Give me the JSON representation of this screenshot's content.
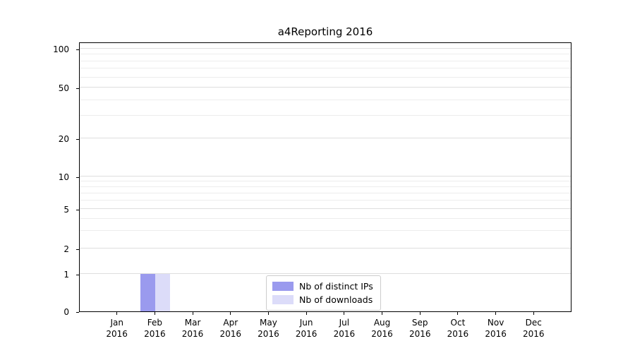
{
  "chart_data": {
    "type": "bar",
    "title": "a4Reporting 2016",
    "x_tick_labels": [
      {
        "month": "Jan",
        "year": "2016"
      },
      {
        "month": "Feb",
        "year": "2016"
      },
      {
        "month": "Mar",
        "year": "2016"
      },
      {
        "month": "Apr",
        "year": "2016"
      },
      {
        "month": "May",
        "year": "2016"
      },
      {
        "month": "Jun",
        "year": "2016"
      },
      {
        "month": "Jul",
        "year": "2016"
      },
      {
        "month": "Aug",
        "year": "2016"
      },
      {
        "month": "Sep",
        "year": "2016"
      },
      {
        "month": "Oct",
        "year": "2016"
      },
      {
        "month": "Nov",
        "year": "2016"
      },
      {
        "month": "Dec",
        "year": "2016"
      }
    ],
    "series": [
      {
        "name": "Nb of distinct IPs",
        "color": "#9a9aee",
        "values": [
          0,
          1,
          0,
          0,
          0,
          0,
          0,
          0,
          0,
          0,
          0,
          0
        ]
      },
      {
        "name": "Nb of downloads",
        "color": "#dcdcf9",
        "values": [
          0,
          1,
          0,
          0,
          0,
          0,
          0,
          0,
          0,
          0,
          0,
          0
        ]
      }
    ],
    "y_axis": {
      "scale": "symlog",
      "major_ticks": [
        0,
        1,
        2,
        5,
        10,
        20,
        50,
        100
      ],
      "minor_ticks": [
        3,
        4,
        6,
        7,
        8,
        9,
        30,
        40,
        60,
        70,
        80,
        90
      ],
      "ylim": [
        0,
        100
      ]
    },
    "legend_position": "lower center",
    "grid": "horizontal"
  }
}
